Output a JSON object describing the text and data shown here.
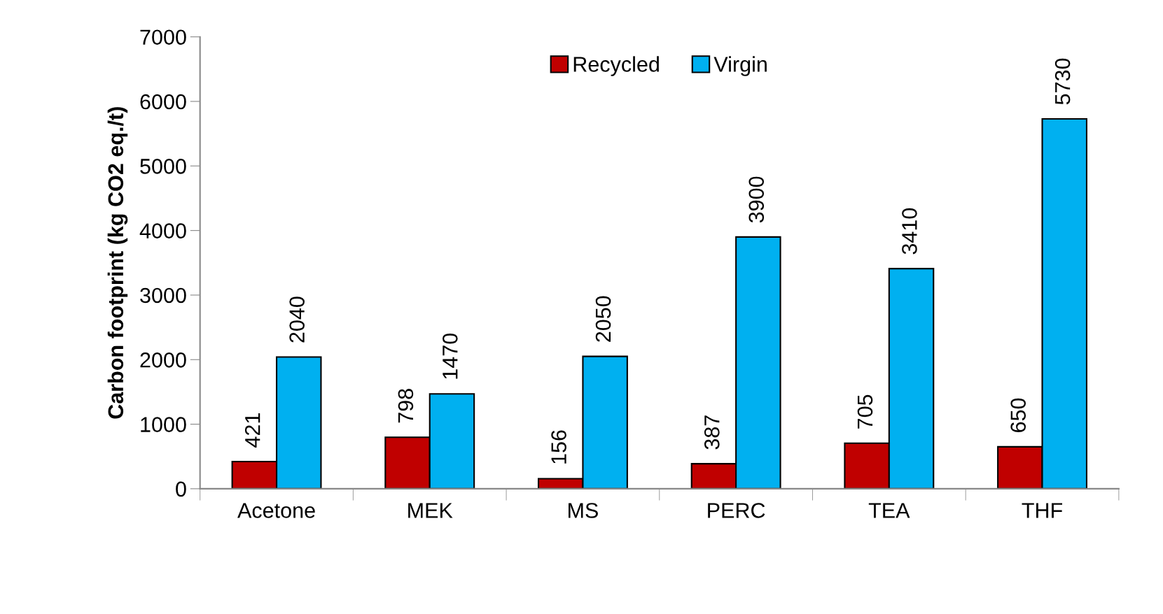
{
  "chart_data": {
    "type": "bar",
    "ylabel": "Carbon footprint (kg CO2 eq./t)",
    "categories": [
      "Acetone",
      "MEK",
      "MS",
      "PERC",
      "TEA",
      "THF"
    ],
    "series": [
      {
        "name": "Recycled",
        "color": "#c00000",
        "values": [
          421,
          798,
          156,
          387,
          705,
          650
        ]
      },
      {
        "name": "Virgin",
        "color": "#00b0f0",
        "values": [
          2040,
          1470,
          2050,
          3900,
          3410,
          5730
        ]
      }
    ],
    "ylim": [
      0,
      7000
    ],
    "yticks": [
      0,
      1000,
      2000,
      3000,
      4000,
      5000,
      6000,
      7000
    ],
    "data_labels": true,
    "legend": "top",
    "grid": false
  }
}
